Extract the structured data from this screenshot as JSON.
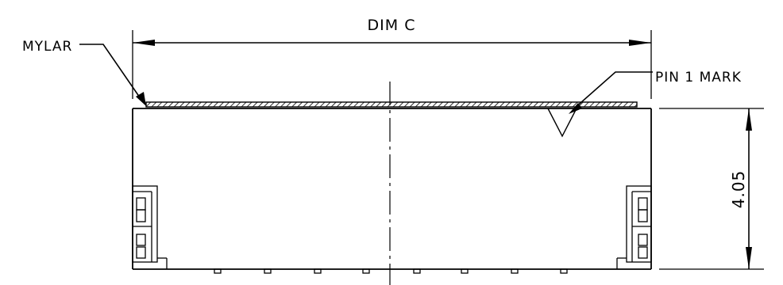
{
  "labels": {
    "dimension_c": "DIM C",
    "mylar": "MYLAR",
    "pin1_mark": "PIN 1 MARK",
    "height": "4.05"
  },
  "colors": {
    "line": "#000000",
    "background": "#ffffff"
  }
}
